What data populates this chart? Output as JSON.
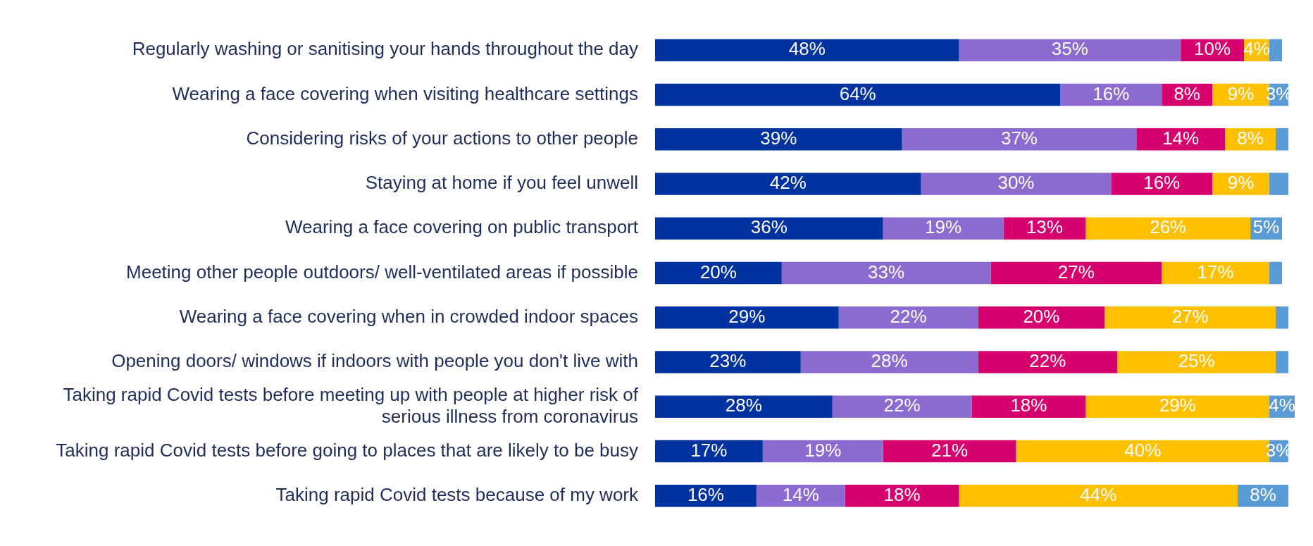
{
  "chart_data": {
    "type": "bar",
    "orientation": "horizontal",
    "stacked": true,
    "tick_labels": "y",
    "legend": false,
    "xlim": [
      0,
      101
    ],
    "categories": [
      "Regularly washing or sanitising your hands throughout the day",
      "Wearing a face covering when visiting healthcare settings",
      "Considering risks of your actions to other people",
      "Staying at home if you feel unwell",
      "Wearing a face covering on public transport",
      "Meeting other people outdoors/ well-ventilated areas if possible",
      "Wearing a face covering when in crowded indoor spaces",
      "Opening doors/ windows if indoors with people you don't live with",
      "Taking rapid Covid tests before meeting up with people at higher risk of serious illness from coronavirus",
      "Taking rapid Covid tests before going to places that are likely to be busy",
      "Taking rapid Covid tests because of my work"
    ],
    "series": [
      {
        "color": "#0033a0",
        "values": [
          48,
          64,
          39,
          42,
          36,
          20,
          29,
          23,
          28,
          17,
          16
        ],
        "value_labels": [
          "48%",
          "64%",
          "39%",
          "42%",
          "36%",
          "20%",
          "29%",
          "23%",
          "28%",
          "17%",
          "16%"
        ]
      },
      {
        "color": "#8c6bd1",
        "values": [
          35,
          16,
          37,
          30,
          19,
          33,
          22,
          28,
          22,
          19,
          14
        ],
        "value_labels": [
          "35%",
          "16%",
          "37%",
          "30%",
          "19%",
          "33%",
          "22%",
          "28%",
          "22%",
          "19%",
          "14%"
        ]
      },
      {
        "color": "#d6006f",
        "values": [
          10,
          8,
          14,
          16,
          13,
          27,
          20,
          22,
          18,
          21,
          18
        ],
        "value_labels": [
          "10%",
          "8%",
          "14%",
          "16%",
          "13%",
          "27%",
          "20%",
          "22%",
          "18%",
          "21%",
          "18%"
        ]
      },
      {
        "color": "#ffc000",
        "values": [
          4,
          9,
          8,
          9,
          26,
          17,
          27,
          25,
          29,
          40,
          44
        ],
        "value_labels": [
          "4%",
          "9%",
          "8%",
          "9%",
          "26%",
          "17%",
          "27%",
          "25%",
          "29%",
          "40%",
          "44%"
        ]
      },
      {
        "color": "#5b9bd5",
        "values": [
          2,
          3,
          2,
          3,
          5,
          2,
          2,
          2,
          4,
          3,
          8
        ],
        "value_labels": [
          null,
          "3%",
          null,
          null,
          "5%",
          null,
          null,
          null,
          "4%",
          "3%",
          "8%"
        ]
      }
    ]
  }
}
